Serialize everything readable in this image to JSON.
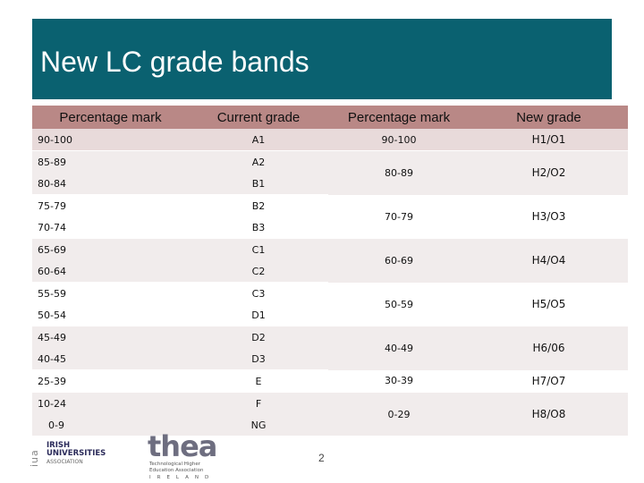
{
  "slide": {
    "title": "New LC grade bands",
    "page_number": "2"
  },
  "table": {
    "headers": [
      "Percentage mark",
      "Current grade",
      "Percentage mark",
      "New grade"
    ],
    "rows": [
      {
        "old_pct": "90-100",
        "old_grade": "A1"
      },
      {
        "old_pct": "85-89",
        "old_grade": "A2"
      },
      {
        "old_pct": "80-84",
        "old_grade": "B1"
      },
      {
        "old_pct": "75-79",
        "old_grade": "B2"
      },
      {
        "old_pct": "70-74",
        "old_grade": "B3"
      },
      {
        "old_pct": "65-69",
        "old_grade": "C1"
      },
      {
        "old_pct": "60-64",
        "old_grade": "C2"
      },
      {
        "old_pct": "55-59",
        "old_grade": "C3"
      },
      {
        "old_pct": "50-54",
        "old_grade": "D1"
      },
      {
        "old_pct": "45-49",
        "old_grade": "D2"
      },
      {
        "old_pct": "40-45",
        "old_grade": "D3"
      },
      {
        "old_pct": "25-39",
        "old_grade": "E"
      },
      {
        "old_pct": "10-24",
        "old_grade": "F"
      },
      {
        "old_pct": "0-9",
        "old_grade": "NG"
      }
    ],
    "new_bands": [
      {
        "pct": "90-100",
        "grade": "H1/O1"
      },
      {
        "pct": "80-89",
        "grade": "H2/O2"
      },
      {
        "pct": "70-79",
        "grade": "H3/O3"
      },
      {
        "pct": "60-69",
        "grade": "H4/O4"
      },
      {
        "pct": "50-59",
        "grade": "H5/O5"
      },
      {
        "pct": "40-49",
        "grade": "H6/06"
      },
      {
        "pct": "30-39",
        "grade": "H7/O7"
      },
      {
        "pct": "0-29",
        "grade": "H8/O8"
      }
    ]
  },
  "logos": {
    "iua_mark": "iua",
    "iua_line1": "IRISH",
    "iua_line2": "UNIVERSITIES",
    "iua_line3": "ASSOCIATION",
    "thea_word": "thea",
    "thea_line1": "Technological Higher",
    "thea_line2": "Education Association",
    "thea_country": "IRELAND"
  },
  "colors": {
    "title_bar": "#0a6170",
    "header_fill": "#b98886",
    "row_shade": "#e8dada"
  }
}
